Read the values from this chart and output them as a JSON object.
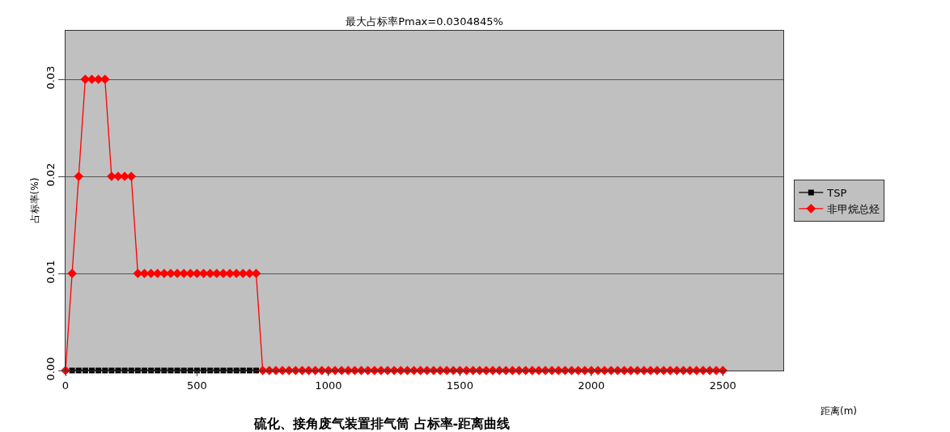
{
  "chart_data": {
    "type": "line",
    "title": "最大占标率Pmax=0.0304845%",
    "xlabel": "距离(m)",
    "ylabel": "占标率(%)",
    "annotations": [
      "硫化、接角废气装置排气筒 占标率-距离曲线"
    ],
    "x": [
      0,
      25,
      50,
      75,
      100,
      125,
      150,
      175,
      200,
      225,
      250,
      275,
      300,
      325,
      350,
      375,
      400,
      425,
      450,
      475,
      500,
      525,
      550,
      575,
      600,
      625,
      650,
      675,
      700,
      725,
      750,
      775,
      800,
      825,
      850,
      875,
      900,
      925,
      950,
      975,
      1000,
      1025,
      1050,
      1075,
      1100,
      1125,
      1150,
      1175,
      1200,
      1225,
      1250,
      1275,
      1300,
      1325,
      1350,
      1375,
      1400,
      1425,
      1450,
      1475,
      1500,
      1525,
      1550,
      1575,
      1600,
      1625,
      1650,
      1675,
      1700,
      1725,
      1750,
      1775,
      1800,
      1825,
      1850,
      1875,
      1900,
      1925,
      1950,
      1975,
      2000,
      2025,
      2050,
      2075,
      2100,
      2125,
      2150,
      2175,
      2200,
      2225,
      2250,
      2275,
      2300,
      2325,
      2350,
      2375,
      2400,
      2425,
      2450,
      2475,
      2500
    ],
    "series": [
      {
        "name": "TSP",
        "color": "#000000",
        "marker": "square",
        "x": [
          25,
          50,
          75,
          100,
          125,
          150,
          175,
          200,
          225,
          250,
          275,
          300,
          325,
          350,
          375,
          400,
          425,
          450,
          475,
          500,
          525,
          550,
          575,
          600,
          625,
          650,
          675,
          700,
          725
        ],
        "values": [
          0,
          0,
          0,
          0,
          0,
          0,
          0,
          0,
          0,
          0,
          0,
          0,
          0,
          0,
          0,
          0,
          0,
          0,
          0,
          0,
          0,
          0,
          0,
          0,
          0,
          0,
          0,
          0,
          0
        ]
      },
      {
        "name": "非甲烷总烃",
        "color": "#ff0000",
        "marker": "diamond",
        "values": [
          0,
          0.01,
          0.02,
          0.03,
          0.03,
          0.03,
          0.03,
          0.02,
          0.02,
          0.02,
          0.02,
          0.01,
          0.01,
          0.01,
          0.01,
          0.01,
          0.01,
          0.01,
          0.01,
          0.01,
          0.01,
          0.01,
          0.01,
          0.01,
          0.01,
          0.01,
          0.01,
          0.01,
          0.01,
          0.01,
          0,
          0,
          0,
          0,
          0,
          0,
          0,
          0,
          0,
          0,
          0,
          0,
          0,
          0,
          0,
          0,
          0,
          0,
          0,
          0,
          0,
          0,
          0,
          0,
          0,
          0,
          0,
          0,
          0,
          0,
          0,
          0,
          0,
          0,
          0,
          0,
          0,
          0,
          0,
          0,
          0,
          0,
          0,
          0,
          0,
          0,
          0,
          0,
          0,
          0,
          0,
          0,
          0,
          0,
          0,
          0,
          0,
          0,
          0,
          0,
          0,
          0,
          0,
          0,
          0,
          0,
          0,
          0,
          0,
          0,
          0
        ]
      }
    ],
    "xlim": [
      0,
      2730
    ],
    "xticks": [
      0,
      500,
      1000,
      1500,
      2000,
      2500
    ],
    "ylim": [
      0,
      0.035
    ],
    "yticks": [
      {
        "value": 0,
        "label": "0.00"
      },
      {
        "value": 0.01,
        "label": "0.01"
      },
      {
        "value": 0.02,
        "label": "0.02"
      },
      {
        "value": 0.03,
        "label": "0.03"
      }
    ],
    "grid": "y",
    "legend": "right",
    "line_style": "solid"
  }
}
